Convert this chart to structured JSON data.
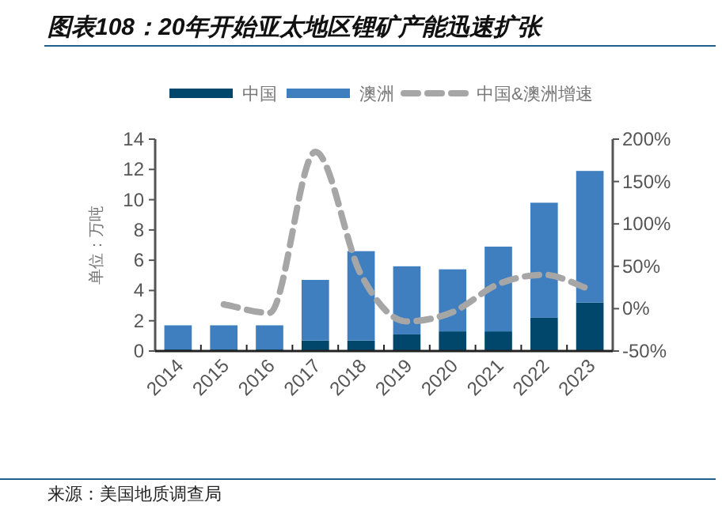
{
  "chart_data": {
    "type": "bar",
    "title": "图表108：20年开始亚太地区锂矿产能迅速扩张",
    "ylabel": "单位：万吨",
    "annotations": [
      "来源：美国地质调查局"
    ],
    "stacked": true,
    "legend": "top",
    "categories": [
      "2014",
      "2015",
      "2016",
      "2017",
      "2018",
      "2019",
      "2020",
      "2021",
      "2022",
      "2023"
    ],
    "series": [
      {
        "name": "中国",
        "color": "#00476b",
        "values": [
          0.1,
          0.1,
          0.1,
          0.7,
          0.7,
          1.1,
          1.3,
          1.3,
          2.2,
          3.2
        ]
      },
      {
        "name": "澳洲",
        "color": "#3f7fbf",
        "values": [
          1.6,
          1.6,
          1.6,
          4.0,
          5.9,
          4.5,
          4.1,
          5.6,
          7.6,
          8.7
        ]
      },
      {
        "name": "中国&澳洲增速",
        "type": "line",
        "axis": "y2",
        "color": "#a6a6a6",
        "line_style": "dashed",
        "marker": "none",
        "values": [
          null,
          5,
          -5,
          185,
          40,
          -15,
          -4,
          29,
          40,
          23
        ]
      }
    ],
    "ylim": [
      0,
      14
    ],
    "yticks": [
      0,
      2,
      4,
      6,
      8,
      10,
      12,
      14
    ],
    "y2lim": [
      -50,
      200
    ],
    "y2ticks": [
      {
        "value": -50,
        "label": "-50%"
      },
      {
        "value": 0,
        "label": "0%"
      },
      {
        "value": 50,
        "label": "50%"
      },
      {
        "value": 100,
        "label": "100%"
      },
      {
        "value": 150,
        "label": "150%"
      },
      {
        "value": 200,
        "label": "200%"
      }
    ]
  }
}
